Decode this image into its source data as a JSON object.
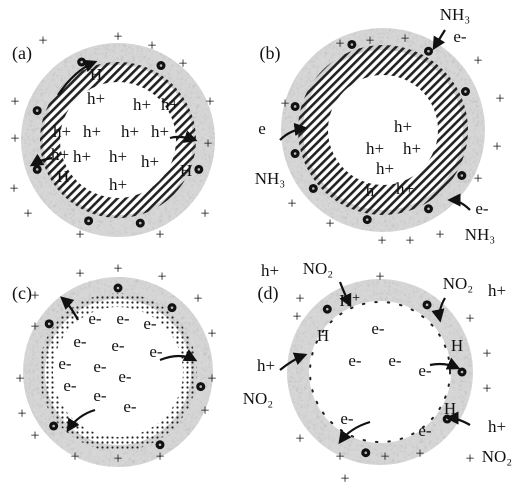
{
  "panels": [
    {
      "label": "(a)",
      "texts": [
        "H",
        "H",
        "H",
        "h+",
        "h+",
        "h+",
        "h+",
        "h+",
        "h+",
        "h+",
        "h+",
        "h+",
        "h+",
        "h+",
        "h+"
      ],
      "charges": [
        "+",
        "+",
        "+",
        "+",
        "+",
        "+",
        "+",
        "+",
        "+",
        "+",
        "+",
        "+",
        "+"
      ]
    },
    {
      "label": "(b)",
      "texts": [
        "NH₃",
        "e-",
        "e",
        "NH₃",
        "e-",
        "NH₃",
        "h+",
        "h+",
        "h+",
        "h+",
        "h",
        "h+"
      ],
      "charges": [
        "+",
        "+",
        "+",
        "+",
        "+",
        "+",
        "+",
        "+",
        "+",
        "+",
        "+",
        "+",
        "+"
      ]
    },
    {
      "label": "(c)",
      "texts": [
        "e-",
        "e-",
        "e-",
        "e-",
        "e-",
        "e-",
        "e-",
        "e-",
        "e-",
        "e-",
        "e-",
        "e-"
      ],
      "charges": [
        "+",
        "+",
        "+",
        "+",
        "+",
        "+",
        "+",
        "+",
        "+",
        "+",
        "+",
        "+",
        "+",
        "+",
        "+"
      ]
    },
    {
      "label": "(d)",
      "texts": [
        "h+",
        "NO₂",
        "NO₂",
        "h+",
        "H⁺",
        "H",
        "H",
        "h+",
        "NO₂",
        "e-",
        "e-",
        "e-",
        "e-",
        "e-",
        "e-",
        "H",
        "h+",
        "NO₂"
      ],
      "charges": [
        "+",
        "+",
        "+",
        "+",
        "+",
        "+",
        "+",
        "+",
        "+",
        "+",
        "+",
        "+"
      ]
    }
  ]
}
